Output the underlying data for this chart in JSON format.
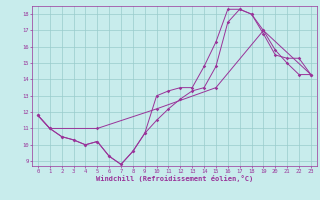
{
  "xlabel": "Windchill (Refroidissement éolien,°C)",
  "xlim": [
    -0.5,
    23.5
  ],
  "ylim": [
    8.7,
    18.5
  ],
  "yticks": [
    9,
    10,
    11,
    12,
    13,
    14,
    15,
    16,
    17,
    18
  ],
  "xticks": [
    0,
    1,
    2,
    3,
    4,
    5,
    6,
    7,
    8,
    9,
    10,
    11,
    12,
    13,
    14,
    15,
    16,
    17,
    18,
    19,
    20,
    21,
    22,
    23
  ],
  "background_color": "#c8ecec",
  "grid_color": "#aadddd",
  "line_color": "#993399",
  "line1_x": [
    0,
    1,
    2,
    3,
    4,
    5,
    6,
    7,
    8,
    9,
    10,
    11,
    12,
    13,
    14,
    15,
    16,
    17,
    18,
    19,
    20,
    21,
    22,
    23
  ],
  "line1_y": [
    11.8,
    11.0,
    10.5,
    10.3,
    10.0,
    10.2,
    9.3,
    8.8,
    9.6,
    10.7,
    13.0,
    13.3,
    13.5,
    13.5,
    14.8,
    16.3,
    18.3,
    18.3,
    18.0,
    17.0,
    15.8,
    15.0,
    14.3,
    14.3
  ],
  "line2_x": [
    0,
    1,
    2,
    3,
    4,
    5,
    6,
    7,
    8,
    9,
    10,
    11,
    12,
    13,
    14,
    15,
    16,
    17,
    18,
    19,
    20,
    21,
    22,
    23
  ],
  "line2_y": [
    11.8,
    11.0,
    10.5,
    10.3,
    10.0,
    10.2,
    9.3,
    8.8,
    9.6,
    10.7,
    11.5,
    12.2,
    12.8,
    13.3,
    13.5,
    14.8,
    17.5,
    18.3,
    18.0,
    16.8,
    15.5,
    15.3,
    15.3,
    14.3
  ],
  "line3_x": [
    0,
    1,
    5,
    10,
    15,
    19,
    23
  ],
  "line3_y": [
    11.8,
    11.0,
    11.0,
    12.2,
    13.5,
    17.0,
    14.3
  ]
}
